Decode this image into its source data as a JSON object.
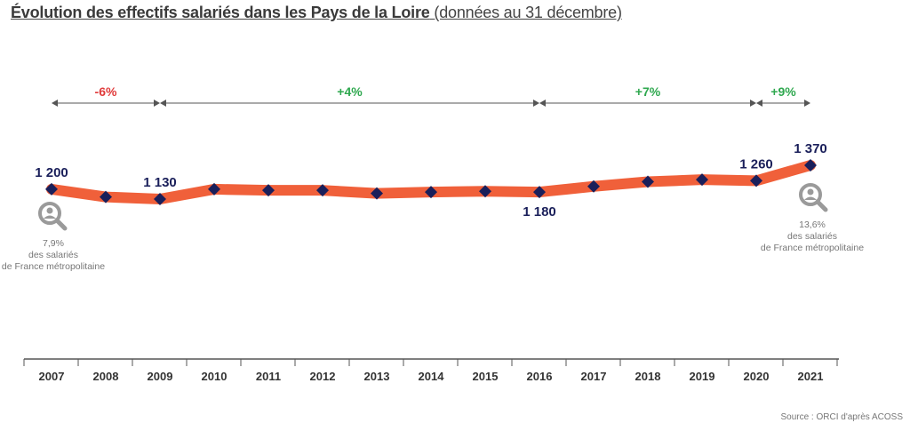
{
  "title": {
    "bold": "Évolution des effectifs salariés dans les Pays de la Loire",
    "regular": "(données au 31 décembre)"
  },
  "chart_data": {
    "type": "line",
    "x": [
      "2007",
      "2008",
      "2009",
      "2010",
      "2011",
      "2012",
      "2013",
      "2014",
      "2015",
      "2016",
      "2017",
      "2018",
      "2019",
      "2020",
      "2021"
    ],
    "series": [
      {
        "values": [
          1200,
          1145,
          1130,
          1200,
          1192,
          1192,
          1170,
          1180,
          1185,
          1180,
          1220,
          1253,
          1268,
          1260,
          1370
        ]
      }
    ],
    "labels": [
      {
        "index": 0,
        "text": "1 200",
        "pos": "above"
      },
      {
        "index": 2,
        "text": "1 130",
        "pos": "above"
      },
      {
        "index": 9,
        "text": "1 180",
        "pos": "below"
      },
      {
        "index": 13,
        "text": "1 260",
        "pos": "above"
      },
      {
        "index": 14,
        "text": "1 370",
        "pos": "above"
      }
    ],
    "periods": [
      {
        "from": 0,
        "to": 2,
        "label": "-6%",
        "color": "#e03a3a"
      },
      {
        "from": 2,
        "to": 9,
        "label": "+4%",
        "color": "#2fa84f"
      },
      {
        "from": 9,
        "to": 13,
        "label": "+7%",
        "color": "#2fa84f"
      },
      {
        "from": 13,
        "to": 14,
        "label": "+9%",
        "color": "#2fa84f"
      }
    ],
    "line_color": "#f0603a",
    "marker_color": "#1a1f5a",
    "yrange": [
      1000,
      1500
    ]
  },
  "notes": {
    "left": {
      "pct": "7,9%",
      "line1": "des salariés",
      "line2": "de France métropolitaine"
    },
    "right": {
      "pct": "13,6%",
      "line1": "des salariés",
      "line2": "de France métropolitaine"
    }
  },
  "source": "Source : ORCI d'après ACOSS",
  "icons": {
    "left": "magnifier-person-icon",
    "right": "magnifier-person-icon"
  }
}
